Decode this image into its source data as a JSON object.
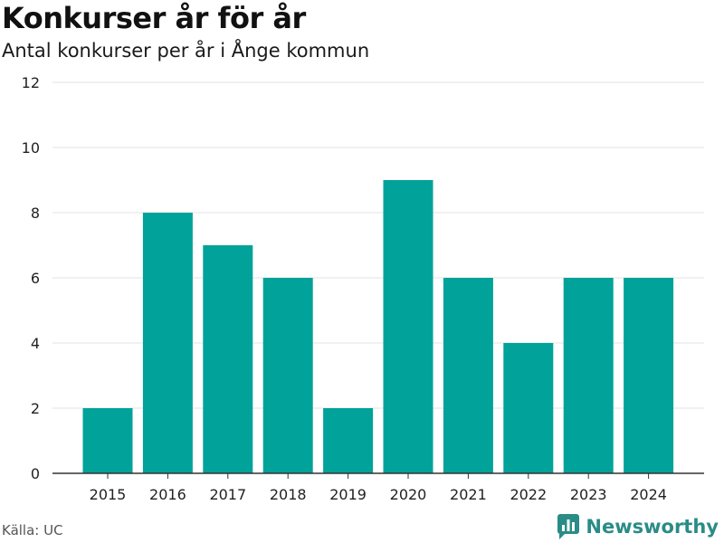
{
  "title": "Konkurser år för år",
  "subtitle": "Antal konkurser per år i Ånge kommun",
  "source": "Källa: UC",
  "brand": {
    "name": "Newsworthy",
    "icon": "newsworthy-logo-icon",
    "color": "#2a8c86"
  },
  "colors": {
    "bar": "#00a29a",
    "grid": "#e3e3e3",
    "axis": "#333333"
  },
  "chart_data": {
    "type": "bar",
    "title": "Konkurser år för år",
    "subtitle": "Antal konkurser per år i Ånge kommun",
    "xlabel": "",
    "ylabel": "",
    "categories": [
      "2015",
      "2016",
      "2017",
      "2018",
      "2019",
      "2020",
      "2021",
      "2022",
      "2023",
      "2024"
    ],
    "values": [
      2,
      8,
      7,
      6,
      2,
      9,
      6,
      4,
      6,
      6
    ],
    "ylim": [
      0,
      12
    ],
    "yticks": [
      0,
      2,
      4,
      6,
      8,
      10,
      12
    ],
    "grid": true,
    "legend": "none"
  }
}
